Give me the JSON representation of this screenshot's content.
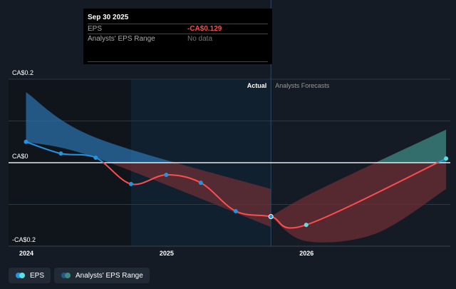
{
  "tooltip": {
    "date": "Sep 30 2025",
    "rows": [
      {
        "label": "EPS",
        "value": "-CA$0.129",
        "color": "#ff4d4d"
      },
      {
        "label": "Analysts' EPS Range",
        "value": "No data",
        "color": "#777777"
      }
    ]
  },
  "legend": [
    {
      "label": "EPS",
      "colors": [
        "#2394df",
        "#5ce1e6"
      ]
    },
    {
      "label": "Analysts' EPS Range",
      "colors": [
        "#1f5a87",
        "#3e8b85"
      ]
    }
  ],
  "colors": {
    "positive": "#2394df",
    "negative": "#ff4d4d",
    "forecast_point": "#5ce1e6",
    "band_positive_past": "#2a6fa8",
    "band_positive_forecast": "#3e8b85",
    "band_negative": "#7a2f36",
    "background": "#151b24"
  },
  "chart_data": {
    "type": "line",
    "ylim": [
      -0.2,
      0.2
    ],
    "y_ticks": [
      {
        "value": 0.2,
        "label": "CA$0.2"
      },
      {
        "value": 0,
        "label": "CA$0"
      },
      {
        "value": -0.2,
        "label": "-CA$0.2"
      }
    ],
    "x_ticks": [
      {
        "date": "2024-01-01",
        "label": "2024"
      },
      {
        "date": "2025-01-01",
        "label": "2025"
      },
      {
        "date": "2026-01-01",
        "label": "2026"
      }
    ],
    "section_labels": {
      "actual": "Actual",
      "forecast": "Analysts Forecasts"
    },
    "divider_date": "2025-09-30",
    "highlight_start": "2024-09-30",
    "eps": {
      "x": [
        "2023-12-31",
        "2024-03-31",
        "2024-06-30",
        "2024-09-30",
        "2024-12-31",
        "2025-03-31",
        "2025-06-30",
        "2025-09-30",
        "2025-12-31",
        "2026-12-31"
      ],
      "y": [
        0.05,
        0.022,
        0.012,
        -0.051,
        -0.029,
        -0.048,
        -0.116,
        -0.129,
        -0.149,
        0.01
      ],
      "forecast_from_index": 8
    },
    "range_past": {
      "x": [
        "2023-12-31",
        "2024-06-30",
        "2025-09-30"
      ],
      "high": [
        0.169,
        0.06,
        -0.063
      ],
      "low": [
        0.05,
        0.012,
        -0.154
      ]
    },
    "range_forecast": {
      "x": [
        "2025-09-30",
        "2025-12-31",
        "2026-06-30",
        "2026-12-31"
      ],
      "high": [
        -0.129,
        -0.08,
        0.0,
        0.079
      ],
      "low": [
        -0.129,
        -0.188,
        -0.17,
        -0.063
      ]
    }
  }
}
